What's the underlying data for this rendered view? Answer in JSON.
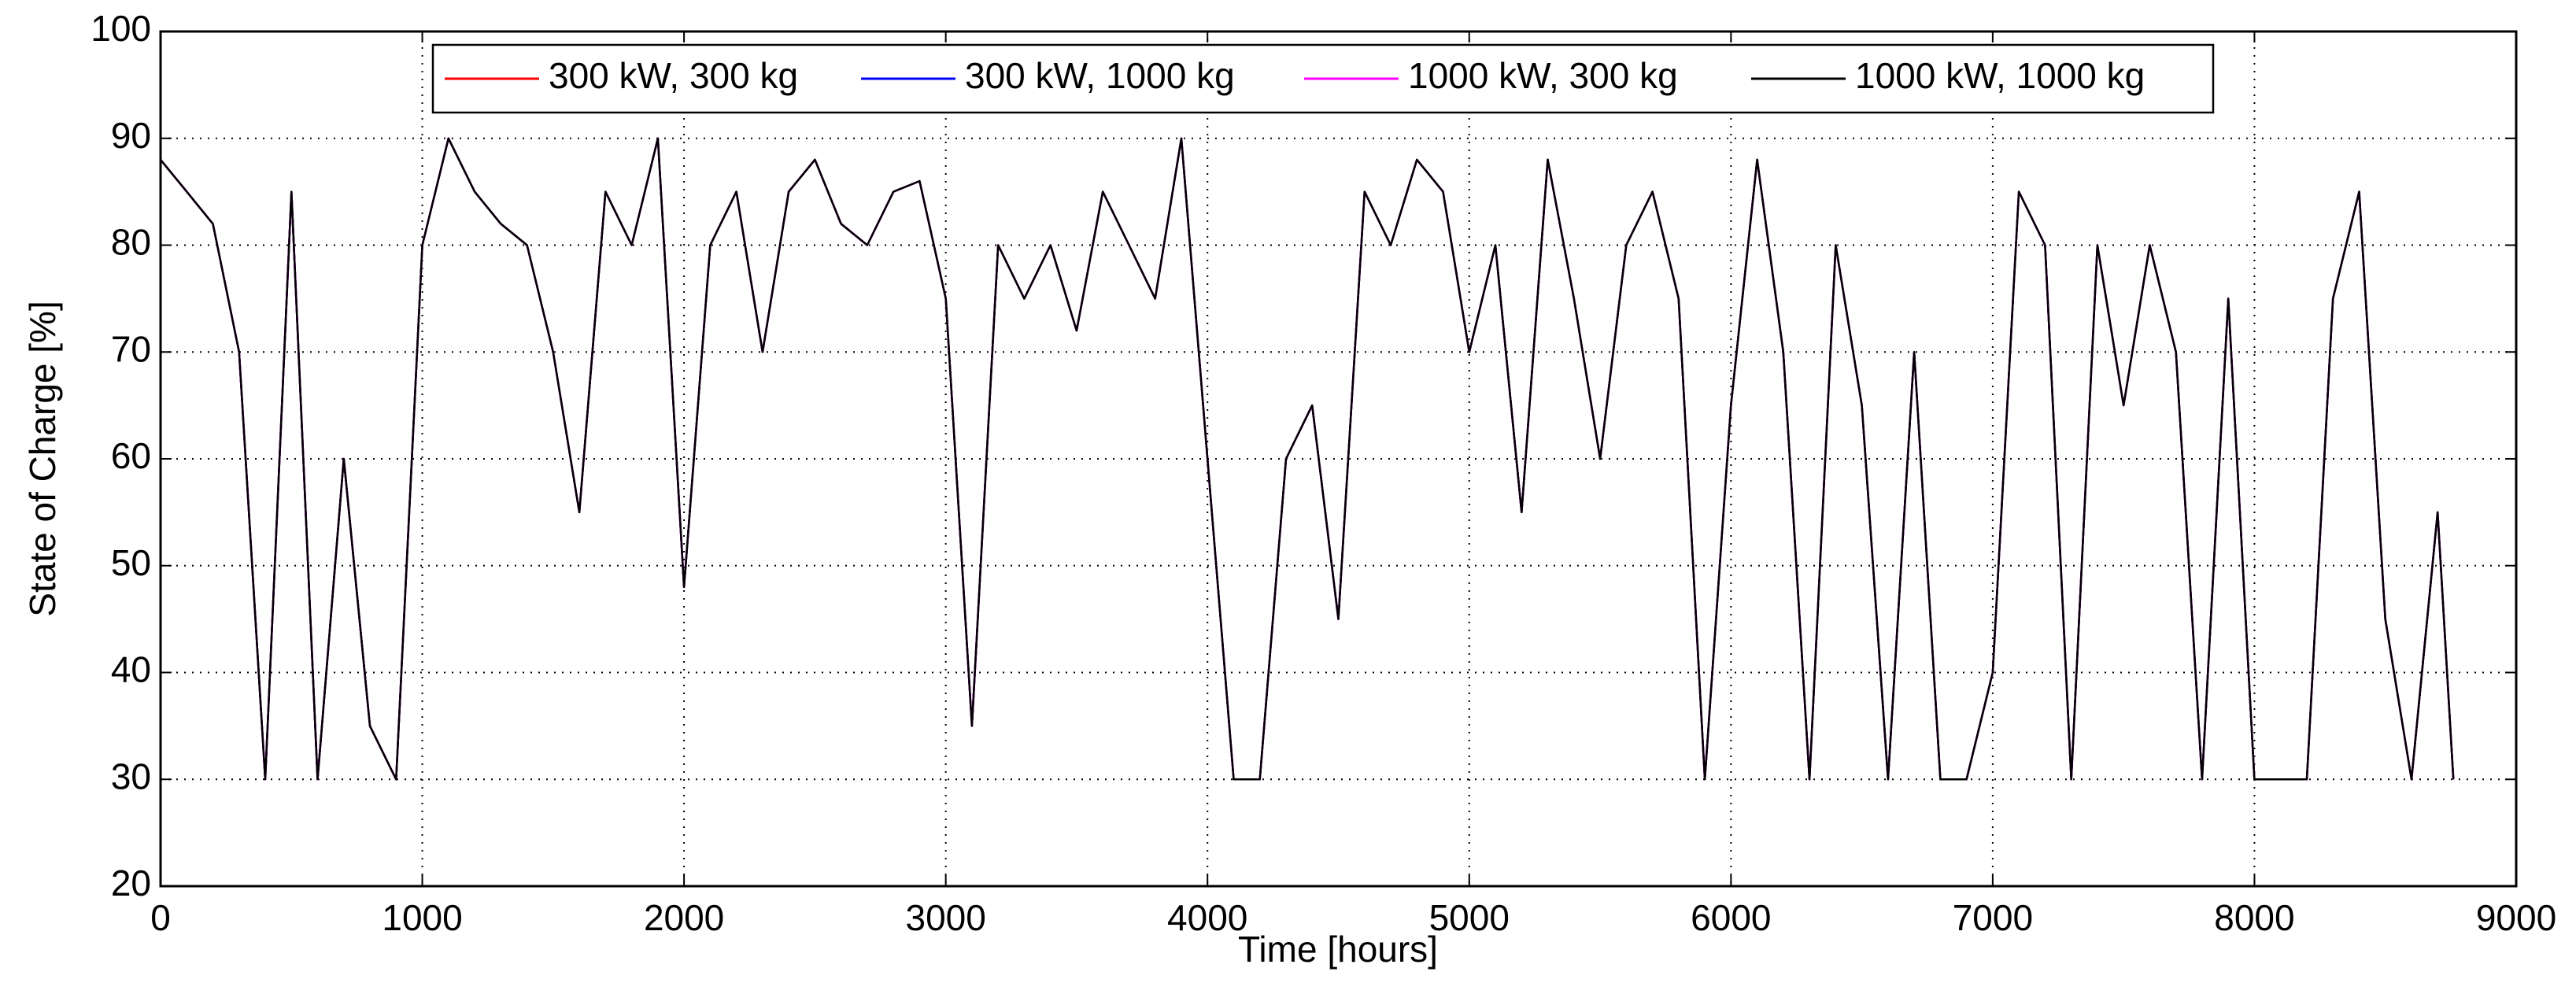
{
  "chart_data": {
    "type": "line",
    "xlabel": "Time [hours]",
    "ylabel": "State of Charge [%]",
    "x": [
      0,
      100,
      200,
      300,
      400,
      500,
      600,
      700,
      800,
      900,
      1000,
      1100,
      1200,
      1300,
      1400,
      1500,
      1600,
      1700,
      1800,
      1900,
      2000,
      2100,
      2200,
      2300,
      2400,
      2500,
      2600,
      2700,
      2800,
      2900,
      3000,
      3100,
      3200,
      3300,
      3400,
      3500,
      3600,
      3700,
      3800,
      3900,
      4000,
      4100,
      4200,
      4300,
      4400,
      4500,
      4600,
      4700,
      4800,
      4900,
      5000,
      5100,
      5200,
      5300,
      5400,
      5500,
      5600,
      5700,
      5800,
      5900,
      6000,
      6100,
      6200,
      6300,
      6400,
      6500,
      6600,
      6700,
      6800,
      6900,
      7000,
      7100,
      7200,
      7300,
      7400,
      7500,
      7600,
      7700,
      7800,
      7900,
      8000,
      8100,
      8200,
      8300,
      8400,
      8500,
      8600,
      8700,
      8760
    ],
    "series": [
      {
        "name": "300 kW, 300 kg",
        "color": "#ff0000",
        "values": [
          88,
          85,
          82,
          70,
          30,
          85,
          30,
          60,
          35,
          30,
          80,
          90,
          85,
          82,
          80,
          70,
          55,
          85,
          80,
          90,
          48,
          80,
          85,
          70,
          85,
          88,
          82,
          80,
          85,
          86,
          75,
          35,
          80,
          75,
          80,
          72,
          85,
          80,
          75,
          90,
          60,
          30,
          30,
          60,
          65,
          45,
          85,
          80,
          88,
          85,
          70,
          80,
          55,
          88,
          75,
          60,
          80,
          85,
          75,
          30,
          65,
          88,
          70,
          30,
          80,
          65,
          30,
          70,
          30,
          30,
          40,
          85,
          80,
          30,
          80,
          65,
          80,
          70,
          30,
          75,
          30,
          30,
          30,
          75,
          85,
          45,
          30,
          55,
          30
        ]
      },
      {
        "name": "300 kW, 1000 kg",
        "color": "#0000ff",
        "values": [
          88,
          85,
          82,
          70,
          30,
          85,
          30,
          60,
          35,
          30,
          80,
          90,
          85,
          82,
          80,
          70,
          55,
          85,
          80,
          90,
          48,
          80,
          85,
          70,
          85,
          88,
          82,
          80,
          85,
          86,
          75,
          35,
          80,
          75,
          80,
          72,
          85,
          80,
          75,
          90,
          60,
          30,
          30,
          60,
          65,
          45,
          85,
          80,
          88,
          85,
          70,
          80,
          55,
          88,
          75,
          60,
          80,
          85,
          75,
          30,
          65,
          88,
          70,
          30,
          80,
          65,
          30,
          70,
          30,
          30,
          40,
          85,
          80,
          30,
          80,
          65,
          80,
          70,
          30,
          75,
          30,
          30,
          30,
          75,
          85,
          45,
          30,
          55,
          30
        ]
      },
      {
        "name": "1000 kW, 300 kg",
        "color": "#ff00ff",
        "values": [
          88,
          85,
          82,
          70,
          30,
          85,
          30,
          60,
          35,
          30,
          80,
          90,
          85,
          82,
          80,
          70,
          55,
          85,
          80,
          90,
          48,
          80,
          85,
          70,
          85,
          88,
          82,
          80,
          85,
          86,
          75,
          35,
          80,
          75,
          80,
          72,
          85,
          80,
          75,
          90,
          60,
          30,
          30,
          60,
          65,
          45,
          85,
          80,
          88,
          85,
          70,
          80,
          55,
          88,
          75,
          60,
          80,
          85,
          75,
          30,
          65,
          88,
          70,
          30,
          80,
          65,
          30,
          70,
          30,
          30,
          40,
          85,
          80,
          30,
          80,
          65,
          80,
          70,
          30,
          75,
          30,
          30,
          30,
          75,
          85,
          45,
          30,
          55,
          30
        ]
      },
      {
        "name": "1000 kW, 1000 kg",
        "color": "#000000",
        "values": [
          88,
          85,
          82,
          70,
          30,
          85,
          30,
          60,
          35,
          30,
          80,
          90,
          85,
          82,
          80,
          70,
          55,
          85,
          80,
          90,
          48,
          80,
          85,
          70,
          85,
          88,
          82,
          80,
          85,
          86,
          75,
          35,
          80,
          75,
          80,
          72,
          85,
          80,
          75,
          90,
          60,
          30,
          30,
          60,
          65,
          45,
          85,
          80,
          88,
          85,
          70,
          80,
          55,
          88,
          75,
          60,
          80,
          85,
          75,
          30,
          65,
          88,
          70,
          30,
          80,
          65,
          30,
          70,
          30,
          30,
          40,
          85,
          80,
          30,
          80,
          65,
          80,
          70,
          30,
          75,
          30,
          30,
          30,
          75,
          85,
          45,
          30,
          55,
          30
        ]
      }
    ],
    "xlim": [
      0,
      9000
    ],
    "xticks": [
      0,
      1000,
      2000,
      3000,
      4000,
      5000,
      6000,
      7000,
      8000,
      9000
    ],
    "ylim": [
      20,
      100
    ],
    "yticks": [
      20,
      30,
      40,
      50,
      60,
      70,
      80,
      90,
      100
    ],
    "grid": true,
    "legend": "upper center"
  }
}
